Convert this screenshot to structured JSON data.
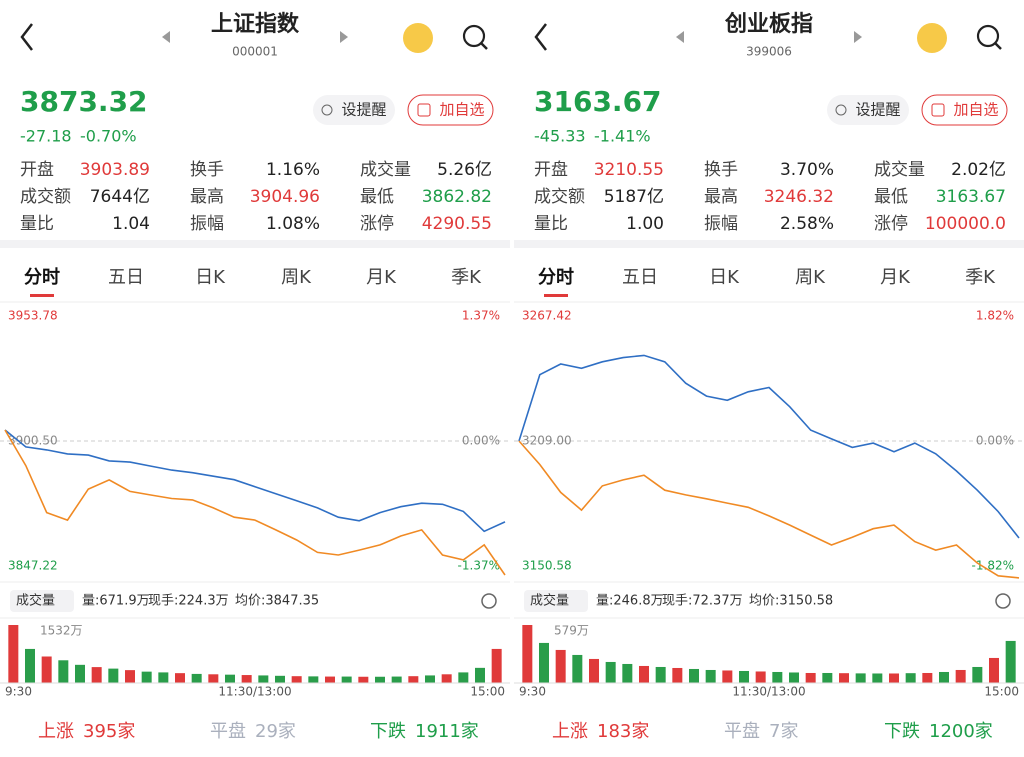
{
  "panels": [
    {
      "title": "上证指数",
      "code": "000001",
      "price": "3873.32",
      "change": "-27.18",
      "change_pct": "-0.70%",
      "color": "#1f9e4a",
      "buttons": [
        "设提醒",
        "加自选"
      ],
      "stats": [
        {
          "label": "开盘",
          "value": "3903.89",
          "color": "#e03a3a"
        },
        {
          "label": "换手",
          "value": "1.16%",
          "color": "#222222"
        },
        {
          "label": "成交量",
          "value": "5.26亿",
          "color": "#222222"
        },
        {
          "label": "成交额",
          "value": "7644亿",
          "color": "#222222"
        },
        {
          "label": "最高",
          "value": "3904.96",
          "color": "#e03a3a"
        },
        {
          "label": "最低",
          "value": "3862.82",
          "color": "#1f9e4a"
        },
        {
          "label": "量比",
          "value": "1.04",
          "color": "#222222"
        },
        {
          "label": "振幅",
          "value": "1.08%",
          "color": "#222222"
        },
        {
          "label": "涨停",
          "value": "4290.55",
          "color": "#e03a3a"
        }
      ],
      "tabs": [
        "分时",
        "五日",
        "日K",
        "周K",
        "月K",
        "季K"
      ],
      "chart": {
        "type": "line",
        "ylim": [
          3847.22,
          3953.78
        ],
        "yticks": [
          3847.22,
          {
            "value": 3900.5,
            "label": "3900.50"
          },
          3953.78
        ],
        "y2lim": [
          -1.37,
          1.37
        ],
        "y2ticks": [
          {
            "value": -1.37,
            "label": "-1.37%"
          },
          {
            "value": 0,
            "label": "0.00%"
          },
          {
            "value": 1.37,
            "label": "1.37%"
          }
        ],
        "series": [
          {
            "color": "#2f6fc4",
            "values": [
              3905.2,
              3898.0,
              3896.7,
              3895.0,
              3894.5,
              3892.0,
              3891.5,
              3889.8,
              3888.1,
              3887.0,
              3885.5,
              3884.0,
              3881.0,
              3878.0,
              3875.0,
              3872.0,
              3868.0,
              3866.5,
              3870.0,
              3872.5,
              3874.0,
              3873.5,
              3870.5,
              3862.0,
              3866.0
            ]
          },
          {
            "color": "#f08a24",
            "values": [
              3905.2,
              3890.0,
              3870.0,
              3866.8,
              3880.0,
              3883.9,
              3879.0,
              3877.5,
              3876.0,
              3875.4,
              3872.0,
              3868.0,
              3866.8,
              3862.6,
              3858.3,
              3853.0,
              3851.9,
              3854.0,
              3856.2,
              3860.0,
              3862.6,
              3851.9,
              3849.8,
              3856.2,
              3843.4
            ]
          }
        ]
      },
      "volume": {
        "type": "bar",
        "header": "成交量",
        "stats": [
          "量:671.9万",
          "现手:224.3万",
          "均价:3847.35"
        ],
        "ylim": [
          0,
          1532
        ],
        "yticks": [
          {
            "value": 1532,
            "label": "1532万"
          }
        ],
        "values": [
          1532,
          900,
          700,
          600,
          480,
          420,
          380,
          340,
          300,
          280,
          260,
          240,
          230,
          220,
          210,
          200,
          190,
          180,
          175,
          170,
          170,
          165,
          165,
          170,
          180,
          200,
          230,
          280,
          400,
          900
        ],
        "colors": [
          "#e03a3a",
          "#2a9d4a",
          "#e03a3a",
          "#2a9d4a",
          "#2a9d4a",
          "#e03a3a",
          "#2a9d4a",
          "#e03a3a",
          "#2a9d4a",
          "#2a9d4a",
          "#e03a3a",
          "#2a9d4a",
          "#e03a3a",
          "#2a9d4a",
          "#e03a3a",
          "#2a9d4a",
          "#2a9d4a",
          "#e03a3a",
          "#2a9d4a",
          "#e03a3a",
          "#2a9d4a",
          "#e03a3a",
          "#2a9d4a",
          "#2a9d4a",
          "#e03a3a",
          "#2a9d4a",
          "#e03a3a",
          "#2a9d4a",
          "#2a9d4a",
          "#e03a3a"
        ]
      },
      "time_labels": [
        "9:30",
        "11:30/13:00",
        "15:00"
      ],
      "footer": [
        {
          "label": "上涨",
          "value": "395家",
          "color": "#e03a3a"
        },
        {
          "label": "平盘",
          "value": "29家",
          "color": "#aab0bd"
        },
        {
          "label": "下跌",
          "value": "1911家",
          "color": "#1f9e4a"
        }
      ]
    },
    {
      "title": "创业板指",
      "code": "399006",
      "price": "3163.67",
      "change": "-45.33",
      "change_pct": "-1.41%",
      "color": "#1f9e4a",
      "buttons": [
        "设提醒",
        "加自选"
      ],
      "stats": [
        {
          "label": "开盘",
          "value": "3210.55",
          "color": "#e03a3a"
        },
        {
          "label": "换手",
          "value": "3.70%",
          "color": "#222222"
        },
        {
          "label": "成交量",
          "value": "2.02亿",
          "color": "#222222"
        },
        {
          "label": "成交额",
          "value": "5187亿",
          "color": "#222222"
        },
        {
          "label": "最高",
          "value": "3246.32",
          "color": "#e03a3a"
        },
        {
          "label": "最低",
          "value": "3163.67",
          "color": "#1f9e4a"
        },
        {
          "label": "量比",
          "value": "1.00",
          "color": "#222222"
        },
        {
          "label": "振幅",
          "value": "2.58%",
          "color": "#222222"
        },
        {
          "label": "涨停",
          "value": "100000.0",
          "color": "#e03a3a"
        }
      ],
      "tabs": [
        "分时",
        "五日",
        "日K",
        "周K",
        "月K",
        "季K"
      ],
      "chart": {
        "type": "line",
        "ylim": [
          3150.58,
          3267.42
        ],
        "yticks": [
          3150.58,
          {
            "value": 3209,
            "label": "3209.00"
          },
          3267.42
        ],
        "y2lim": [
          -1.82,
          1.82
        ],
        "y2ticks": [
          {
            "value": -1.82,
            "label": "-1.82%"
          },
          {
            "value": 0,
            "label": "0.00%"
          },
          {
            "value": 1.82,
            "label": "1.82%"
          }
        ],
        "series": [
          {
            "color": "#2f6fc4",
            "values": [
              3209.0,
              3240.0,
              3245.0,
              3243.0,
              3246.0,
              3248.0,
              3249.0,
              3246.0,
              3236.0,
              3230.0,
              3228.0,
              3232.0,
              3234.0,
              3225.0,
              3214.1,
              3210.0,
              3206.0,
              3208.0,
              3204.0,
              3208.0,
              3203.0,
              3195.0,
              3186.0,
              3176.0,
              3163.67
            ]
          },
          {
            "color": "#f08a24",
            "values": [
              3209.0,
              3198.0,
              3185.0,
              3176.7,
              3188.0,
              3190.8,
              3193.0,
              3186.0,
              3183.8,
              3182.0,
              3180.0,
              3178.0,
              3174.0,
              3169.7,
              3165.0,
              3160.4,
              3164.0,
              3168.0,
              3169.7,
              3162.0,
              3158.0,
              3160.4,
              3152.0,
              3146.0,
              3145.0
            ]
          }
        ]
      },
      "volume": {
        "type": "bar",
        "header": "成交量",
        "stats": [
          "量:246.8万",
          "现手:72.37万",
          "均价:3150.58"
        ],
        "ylim": [
          0,
          579
        ],
        "yticks": [
          {
            "value": 579,
            "label": "579万"
          }
        ],
        "values": [
          579,
          400,
          330,
          280,
          240,
          210,
          190,
          170,
          160,
          150,
          140,
          130,
          125,
          120,
          115,
          110,
          105,
          100,
          100,
          98,
          96,
          95,
          95,
          98,
          100,
          110,
          130,
          160,
          250,
          420
        ],
        "colors": [
          "#e03a3a",
          "#2a9d4a",
          "#e03a3a",
          "#2a9d4a",
          "#e03a3a",
          "#2a9d4a",
          "#2a9d4a",
          "#e03a3a",
          "#2a9d4a",
          "#e03a3a",
          "#2a9d4a",
          "#2a9d4a",
          "#e03a3a",
          "#2a9d4a",
          "#e03a3a",
          "#2a9d4a",
          "#2a9d4a",
          "#e03a3a",
          "#2a9d4a",
          "#e03a3a",
          "#2a9d4a",
          "#2a9d4a",
          "#e03a3a",
          "#2a9d4a",
          "#e03a3a",
          "#2a9d4a",
          "#e03a3a",
          "#2a9d4a",
          "#e03a3a",
          "#2a9d4a"
        ]
      },
      "time_labels": [
        "9:30",
        "11:30/13:00",
        "15:00"
      ],
      "footer": [
        {
          "label": "上涨",
          "value": "183家",
          "color": "#e03a3a"
        },
        {
          "label": "平盘",
          "value": "7家",
          "color": "#aab0bd"
        },
        {
          "label": "下跌",
          "value": "1200家",
          "color": "#1f9e4a"
        }
      ]
    }
  ]
}
